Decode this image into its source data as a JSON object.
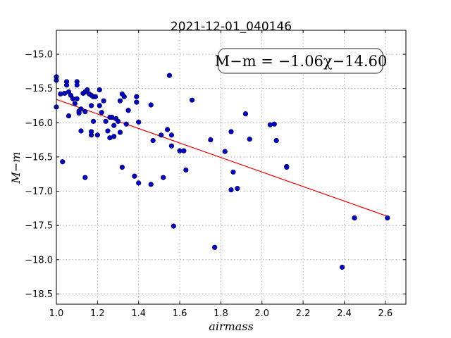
{
  "chart_data": {
    "type": "scatter",
    "title": "2021-12-01_040146",
    "xlabel": "airmass",
    "ylabel": "M−m",
    "xlim": [
      1.0,
      2.7
    ],
    "ylim": [
      -18.65,
      -14.65
    ],
    "y_inverted": true,
    "xticks": [
      1.0,
      1.2,
      1.4,
      1.6,
      1.8,
      2.0,
      2.2,
      2.4,
      2.6
    ],
    "xtick_labels": [
      "1.0",
      "1.2",
      "1.4",
      "1.6",
      "1.8",
      "2.0",
      "2.2",
      "2.4",
      "2.6"
    ],
    "yticks": [
      -15.0,
      -15.5,
      -16.0,
      -16.5,
      -17.0,
      -17.5,
      -18.0,
      -18.5
    ],
    "ytick_labels": [
      "−15.0",
      "−15.5",
      "−16.0",
      "−16.5",
      "−17.0",
      "−17.5",
      "−18.0",
      "−18.5"
    ],
    "grid": true,
    "annotation": "M−m = −1.06χ−14.60",
    "colors": {
      "points": "#0000cc",
      "fit": "#ee0000"
    },
    "fit": {
      "slope": -1.06,
      "intercept": -14.6,
      "x_range": [
        1.0,
        2.61
      ]
    },
    "points": [
      [
        1.0,
        -15.33
      ],
      [
        1.0,
        -15.38
      ],
      [
        1.0,
        -15.77
      ],
      [
        1.02,
        -15.58
      ],
      [
        1.03,
        -16.57
      ],
      [
        1.04,
        -15.57
      ],
      [
        1.05,
        -15.4
      ],
      [
        1.05,
        -15.45
      ],
      [
        1.06,
        -15.55
      ],
      [
        1.06,
        -15.9
      ],
      [
        1.07,
        -15.6
      ],
      [
        1.08,
        -15.65
      ],
      [
        1.09,
        -15.72
      ],
      [
        1.1,
        -15.4
      ],
      [
        1.1,
        -15.45
      ],
      [
        1.1,
        -15.65
      ],
      [
        1.11,
        -15.83
      ],
      [
        1.11,
        -15.86
      ],
      [
        1.12,
        -15.8
      ],
      [
        1.12,
        -16.12
      ],
      [
        1.13,
        -15.57
      ],
      [
        1.14,
        -15.55
      ],
      [
        1.14,
        -15.84
      ],
      [
        1.14,
        -16.8
      ],
      [
        1.15,
        -15.52
      ],
      [
        1.16,
        -15.58
      ],
      [
        1.17,
        -15.6
      ],
      [
        1.17,
        -15.75
      ],
      [
        1.17,
        -16.13
      ],
      [
        1.17,
        -16.18
      ],
      [
        1.18,
        -15.62
      ],
      [
        1.18,
        -15.98
      ],
      [
        1.19,
        -15.62
      ],
      [
        1.2,
        -16.18
      ],
      [
        1.21,
        -15.52
      ],
      [
        1.21,
        -15.75
      ],
      [
        1.22,
        -15.85
      ],
      [
        1.23,
        -15.68
      ],
      [
        1.24,
        -15.98
      ],
      [
        1.25,
        -16.12
      ],
      [
        1.26,
        -15.92
      ],
      [
        1.26,
        -16.22
      ],
      [
        1.27,
        -15.92
      ],
      [
        1.28,
        -16.04
      ],
      [
        1.28,
        -16.2
      ],
      [
        1.29,
        -15.94
      ],
      [
        1.3,
        -15.98
      ],
      [
        1.31,
        -15.68
      ],
      [
        1.31,
        -16.14
      ],
      [
        1.32,
        -15.58
      ],
      [
        1.32,
        -16.65
      ],
      [
        1.33,
        -15.62
      ],
      [
        1.34,
        -16.02
      ],
      [
        1.35,
        -15.82
      ],
      [
        1.38,
        -16.78
      ],
      [
        1.39,
        -15.62
      ],
      [
        1.39,
        -15.7
      ],
      [
        1.4,
        -15.99
      ],
      [
        1.4,
        -16.88
      ],
      [
        1.46,
        -15.74
      ],
      [
        1.46,
        -16.9
      ],
      [
        1.47,
        -16.26
      ],
      [
        1.51,
        -16.18
      ],
      [
        1.52,
        -16.8
      ],
      [
        1.54,
        -16.1
      ],
      [
        1.55,
        -15.31
      ],
      [
        1.56,
        -16.18
      ],
      [
        1.56,
        -16.34
      ],
      [
        1.57,
        -17.51
      ],
      [
        1.6,
        -16.41
      ],
      [
        1.62,
        -16.41
      ],
      [
        1.63,
        -16.69
      ],
      [
        1.66,
        -15.67
      ],
      [
        1.75,
        -16.25
      ],
      [
        1.77,
        -17.82
      ],
      [
        1.82,
        -16.42
      ],
      [
        1.85,
        -16.13
      ],
      [
        1.85,
        -16.98
      ],
      [
        1.86,
        -16.72
      ],
      [
        1.88,
        -16.96
      ],
      [
        1.92,
        -15.87
      ],
      [
        1.94,
        -16.24
      ],
      [
        2.04,
        -16.03
      ],
      [
        2.06,
        -16.02
      ],
      [
        2.07,
        -16.26
      ],
      [
        2.12,
        -16.64
      ],
      [
        2.12,
        -16.65
      ],
      [
        2.39,
        -18.11
      ],
      [
        2.45,
        -17.39
      ],
      [
        2.61,
        -17.39
      ]
    ]
  }
}
